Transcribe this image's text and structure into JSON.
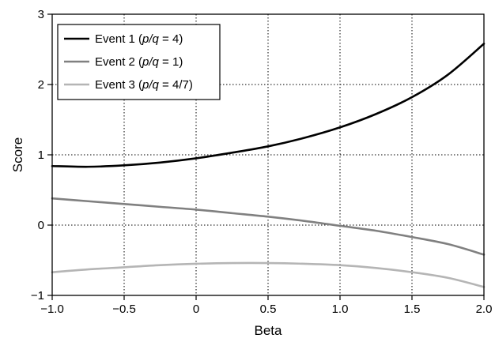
{
  "chart_data": {
    "type": "line",
    "title": "",
    "xlabel": "Beta",
    "ylabel": "Score",
    "xlim": [
      -1.0,
      2.0
    ],
    "ylim": [
      -1,
      3
    ],
    "xticks": [
      -1.0,
      -0.5,
      0,
      0.5,
      1.0,
      1.5,
      2.0
    ],
    "xtick_labels": [
      "−1.0",
      "−0.5",
      "0",
      "0.5",
      "1.0",
      "1.5",
      "2.0"
    ],
    "yticks": [
      -1,
      0,
      1,
      2,
      3
    ],
    "ytick_labels": [
      "−1",
      "0",
      "1",
      "2",
      "3"
    ],
    "grid": true,
    "legend_position": "top-left",
    "series": [
      {
        "name_parts": [
          "Event 1 (",
          "p/q",
          " = 4)"
        ],
        "color": "#000000",
        "x": [
          -1.0,
          -0.75,
          -0.5,
          -0.25,
          0.0,
          0.25,
          0.5,
          0.75,
          1.0,
          1.25,
          1.5,
          1.75,
          2.0
        ],
        "values": [
          0.84,
          0.83,
          0.85,
          0.89,
          0.95,
          1.03,
          1.12,
          1.24,
          1.39,
          1.58,
          1.82,
          2.14,
          2.58
        ]
      },
      {
        "name_parts": [
          "Event 2 (",
          "p/q",
          " = 1)"
        ],
        "color": "#808080",
        "x": [
          -1.0,
          -0.75,
          -0.5,
          -0.25,
          0.0,
          0.25,
          0.5,
          0.75,
          1.0,
          1.25,
          1.5,
          1.75,
          2.0
        ],
        "values": [
          0.38,
          0.34,
          0.3,
          0.26,
          0.22,
          0.17,
          0.12,
          0.06,
          -0.01,
          -0.08,
          -0.17,
          -0.27,
          -0.42
        ]
      },
      {
        "name_parts": [
          "Event 3 (",
          "p/q",
          " = 4/7)"
        ],
        "color": "#b5b5b5",
        "x": [
          -1.0,
          -0.75,
          -0.5,
          -0.25,
          0.0,
          0.25,
          0.5,
          0.75,
          1.0,
          1.25,
          1.5,
          1.75,
          2.0
        ],
        "values": [
          -0.67,
          -0.63,
          -0.6,
          -0.57,
          -0.55,
          -0.54,
          -0.54,
          -0.55,
          -0.57,
          -0.61,
          -0.67,
          -0.75,
          -0.88
        ]
      }
    ]
  }
}
